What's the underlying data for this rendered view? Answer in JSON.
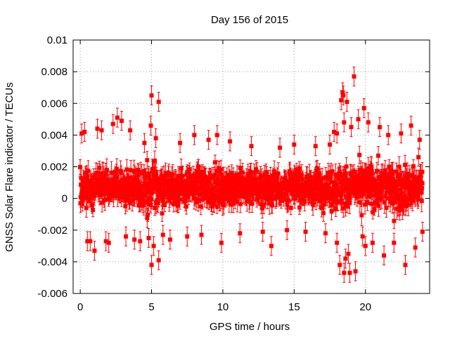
{
  "chart_data": {
    "type": "scatter",
    "title": "Day 156 of 2015",
    "xlabel": "GPS time / hours",
    "ylabel": "GNSS Solar Flare indicator / TECUs",
    "xlim": [
      -0.5,
      24.5
    ],
    "ylim": [
      -0.006,
      0.01
    ],
    "x_ticks": [
      0,
      5,
      10,
      15,
      20
    ],
    "x_tick_labels": [
      "0",
      "5",
      "10",
      "15",
      "20"
    ],
    "y_ticks": [
      -0.006,
      -0.004,
      -0.002,
      0,
      0.002,
      0.004,
      0.006,
      0.008,
      0.01
    ],
    "y_tick_labels": [
      "-0.006",
      "-0.004",
      "-0.002",
      "0",
      "0.002",
      "0.004",
      "0.006",
      "0.008",
      "0.01"
    ],
    "grid": true,
    "marker_color": "#ff0000",
    "error_bars": true,
    "band": {
      "description_values": {
        "x_start": 0.0,
        "x_end": 24.0,
        "center": 0.0007,
        "core_half_width": 0.0018,
        "typical_error": 0.0005
      }
    },
    "outliers": [
      {
        "x": 0.1,
        "y": 0.0041
      },
      {
        "x": 0.3,
        "y": 0.0042
      },
      {
        "x": 0.5,
        "y": -0.0027
      },
      {
        "x": 0.7,
        "y": -0.0027
      },
      {
        "x": 1.0,
        "y": -0.0033
      },
      {
        "x": 1.2,
        "y": 0.0044
      },
      {
        "x": 1.5,
        "y": 0.0043
      },
      {
        "x": 1.8,
        "y": -0.0027
      },
      {
        "x": 2.0,
        "y": -0.0028
      },
      {
        "x": 2.3,
        "y": 0.0047
      },
      {
        "x": 2.6,
        "y": 0.0051
      },
      {
        "x": 2.9,
        "y": 0.0049
      },
      {
        "x": 3.2,
        "y": -0.0024
      },
      {
        "x": 3.5,
        "y": 0.0043
      },
      {
        "x": 3.8,
        "y": -0.0026
      },
      {
        "x": 4.2,
        "y": -0.0027
      },
      {
        "x": 4.5,
        "y": 0.0035
      },
      {
        "x": 4.8,
        "y": -0.0025
      },
      {
        "x": 5.0,
        "y": 0.0065
      },
      {
        "x": 4.95,
        "y": 0.0046
      },
      {
        "x": 5.0,
        "y": -0.0042
      },
      {
        "x": 5.15,
        "y": -0.003
      },
      {
        "x": 5.3,
        "y": 0.0038
      },
      {
        "x": 5.5,
        "y": 0.0061
      },
      {
        "x": 5.5,
        "y": -0.0039
      },
      {
        "x": 5.8,
        "y": -0.0023
      },
      {
        "x": 6.3,
        "y": -0.0026
      },
      {
        "x": 7.0,
        "y": 0.0035
      },
      {
        "x": 7.5,
        "y": -0.0024
      },
      {
        "x": 8.0,
        "y": 0.004
      },
      {
        "x": 8.5,
        "y": -0.0023
      },
      {
        "x": 9.0,
        "y": 0.0037
      },
      {
        "x": 9.6,
        "y": 0.004
      },
      {
        "x": 9.9,
        "y": -0.0028
      },
      {
        "x": 10.5,
        "y": 0.0036
      },
      {
        "x": 11.2,
        "y": -0.0022
      },
      {
        "x": 12.0,
        "y": 0.0033
      },
      {
        "x": 12.8,
        "y": -0.0021
      },
      {
        "x": 13.4,
        "y": -0.003
      },
      {
        "x": 14.0,
        "y": 0.0032
      },
      {
        "x": 14.5,
        "y": -0.002
      },
      {
        "x": 15.0,
        "y": 0.0034
      },
      {
        "x": 15.8,
        "y": -0.0021
      },
      {
        "x": 16.5,
        "y": 0.0033
      },
      {
        "x": 17.2,
        "y": -0.0022
      },
      {
        "x": 17.5,
        "y": 0.0034
      },
      {
        "x": 17.8,
        "y": 0.0042
      },
      {
        "x": 18.0,
        "y": 0.0041
      },
      {
        "x": 18.0,
        "y": -0.0028
      },
      {
        "x": 18.2,
        "y": -0.0042
      },
      {
        "x": 18.3,
        "y": 0.0062
      },
      {
        "x": 18.4,
        "y": 0.0067
      },
      {
        "x": 18.45,
        "y": 0.0065
      },
      {
        "x": 18.5,
        "y": -0.0047
      },
      {
        "x": 18.5,
        "y": 0.0048
      },
      {
        "x": 18.6,
        "y": -0.0038
      },
      {
        "x": 18.7,
        "y": 0.0061
      },
      {
        "x": 18.8,
        "y": -0.0035
      },
      {
        "x": 18.9,
        "y": -0.0047
      },
      {
        "x": 19.0,
        "y": 0.0045
      },
      {
        "x": 19.2,
        "y": 0.0077
      },
      {
        "x": 19.3,
        "y": -0.0046
      },
      {
        "x": 19.5,
        "y": 0.005
      },
      {
        "x": 19.8,
        "y": -0.0024
      },
      {
        "x": 19.9,
        "y": 0.0057
      },
      {
        "x": 20.0,
        "y": -0.003
      },
      {
        "x": 20.2,
        "y": 0.0048
      },
      {
        "x": 20.5,
        "y": -0.0028
      },
      {
        "x": 21.0,
        "y": 0.0045
      },
      {
        "x": 21.3,
        "y": -0.0036
      },
      {
        "x": 21.6,
        "y": 0.004
      },
      {
        "x": 22.0,
        "y": -0.0028
      },
      {
        "x": 22.5,
        "y": 0.0041
      },
      {
        "x": 22.8,
        "y": -0.0042
      },
      {
        "x": 23.2,
        "y": 0.0046
      },
      {
        "x": 23.5,
        "y": -0.0031
      },
      {
        "x": 23.8,
        "y": 0.0037
      },
      {
        "x": 24.0,
        "y": -0.0021
      }
    ]
  }
}
